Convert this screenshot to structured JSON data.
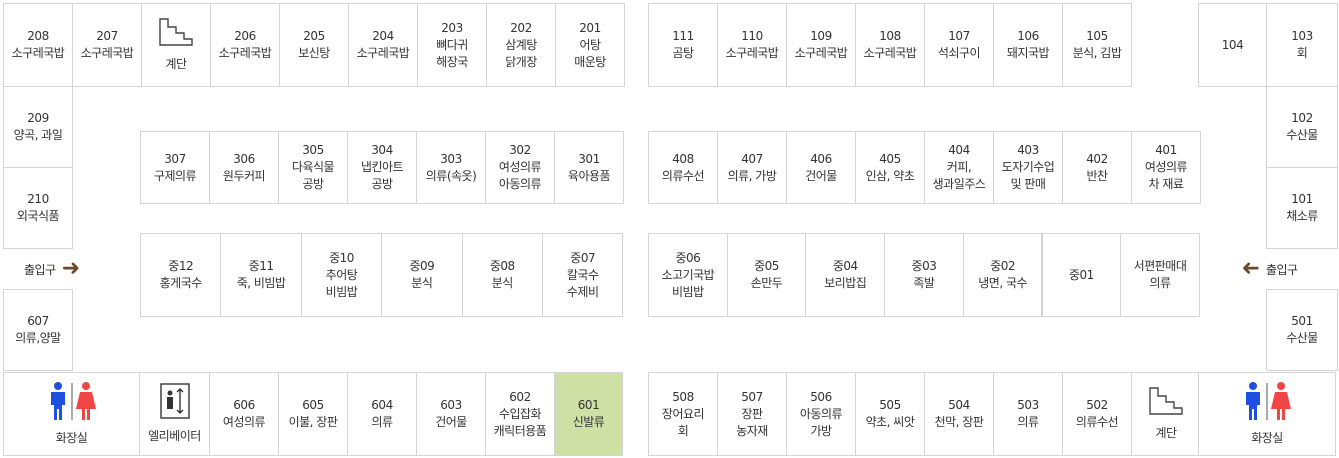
{
  "colors": {
    "highlight": "#cfe0a4",
    "border": "#d4d4d4",
    "arrow": "#6b4a2b",
    "male": "#1e4fe0",
    "female": "#f04646"
  },
  "top_left": [
    {
      "num": "208",
      "label": "소구레국밥"
    },
    {
      "num": "207",
      "label": "소구레국밥"
    },
    {
      "icon": "stairs-icon",
      "label": "계단"
    },
    {
      "num": "206",
      "label": "소구레국밥"
    },
    {
      "num": "205",
      "label": "보신탕"
    },
    {
      "num": "204",
      "label": "소구레국밥"
    },
    {
      "num": "203",
      "label": "뼈다귀\n해장국"
    },
    {
      "num": "202",
      "label": "삼계탕\n닭개장"
    },
    {
      "num": "201",
      "label": "어탕\n매운탕"
    }
  ],
  "top_right": [
    {
      "num": "111",
      "label": "곰탕"
    },
    {
      "num": "110",
      "label": "소구레국밥"
    },
    {
      "num": "109",
      "label": "소구레국밥"
    },
    {
      "num": "108",
      "label": "소구레국밥"
    },
    {
      "num": "107",
      "label": "석쇠구이"
    },
    {
      "num": "106",
      "label": "돼지국밥"
    },
    {
      "num": "105",
      "label": "분식, 김밥"
    }
  ],
  "top_far_right": [
    {
      "num": "104",
      "label": ""
    },
    {
      "num": "103",
      "label": "회"
    }
  ],
  "left_column": [
    {
      "num": "209",
      "label": "양곡, 과일"
    },
    {
      "num": "210",
      "label": "외국식품"
    },
    {
      "num": "607",
      "label": "의류,양말"
    }
  ],
  "right_column": [
    {
      "num": "102",
      "label": "수산물"
    },
    {
      "num": "101",
      "label": "채소류"
    },
    {
      "num": "501",
      "label": "수산물"
    }
  ],
  "row3_left": [
    {
      "num": "307",
      "label": "구제의류"
    },
    {
      "num": "306",
      "label": "원두커피"
    },
    {
      "num": "305",
      "label": "다육식물\n공방"
    },
    {
      "num": "304",
      "label": "냅킨아트\n공방"
    },
    {
      "num": "303",
      "label": "의류(속옷)"
    },
    {
      "num": "302",
      "label": "여성의류\n아동의류"
    },
    {
      "num": "301",
      "label": "육아용품"
    }
  ],
  "row4_right": [
    {
      "num": "408",
      "label": "의류수선"
    },
    {
      "num": "407",
      "label": "의류, 가방"
    },
    {
      "num": "406",
      "label": "건어물"
    },
    {
      "num": "405",
      "label": "인삼, 약초"
    },
    {
      "num": "404",
      "label": "커피,\n생과일주스"
    },
    {
      "num": "403",
      "label": "도자기수업\n및 판매"
    },
    {
      "num": "402",
      "label": "반찬"
    },
    {
      "num": "401",
      "label": "여성의류\n차 재료"
    }
  ],
  "mid_left": [
    {
      "num": "중12",
      "label": "홍게국수"
    },
    {
      "num": "중11",
      "label": "죽, 비빔밥"
    },
    {
      "num": "중10",
      "label": "추어탕\n비빔밥"
    },
    {
      "num": "중09",
      "label": "분식"
    },
    {
      "num": "중08",
      "label": "분식"
    },
    {
      "num": "중07",
      "label": "칼국수\n수제비"
    }
  ],
  "mid_right": [
    {
      "num": "중06",
      "label": "소고기국밥\n비빔밥"
    },
    {
      "num": "중05",
      "label": "손만두"
    },
    {
      "num": "중04",
      "label": "보리밥집"
    },
    {
      "num": "중03",
      "label": "족발"
    },
    {
      "num": "중02",
      "label": "냉면, 국수"
    },
    {
      "num": "중01",
      "label": ""
    },
    {
      "num": "",
      "label": "서편판매대\n의류"
    }
  ],
  "bottom_left": [
    {
      "icon": "restroom-icon",
      "label": "화장실"
    },
    {
      "icon": "elevator-icon",
      "label": "엘리베이터"
    },
    {
      "num": "606",
      "label": "여성의류"
    },
    {
      "num": "605",
      "label": "이불, 장판"
    },
    {
      "num": "604",
      "label": "의류"
    },
    {
      "num": "603",
      "label": "건어물"
    },
    {
      "num": "602",
      "label": "수입잡화\n캐릭터용품"
    },
    {
      "num": "601",
      "label": "신발류"
    }
  ],
  "bottom_right": [
    {
      "num": "508",
      "label": "장어요리\n회"
    },
    {
      "num": "507",
      "label": "장판\n농자재"
    },
    {
      "num": "506",
      "label": "아동의류\n가방"
    },
    {
      "num": "505",
      "label": "약초, 씨앗"
    },
    {
      "num": "504",
      "label": "천막, 장판"
    },
    {
      "num": "503",
      "label": "의류"
    },
    {
      "num": "502",
      "label": "의류수선"
    },
    {
      "icon": "stairs-icon",
      "label": "계단"
    }
  ],
  "bottom_far_right": [
    {
      "icon": "restroom-icon",
      "label": "화장실"
    }
  ],
  "entrance_left": {
    "label": "출입구",
    "icon": "arrow-right-icon"
  },
  "entrance_right": {
    "label": "출입구",
    "icon": "arrow-left-icon"
  },
  "highlighted": "601"
}
